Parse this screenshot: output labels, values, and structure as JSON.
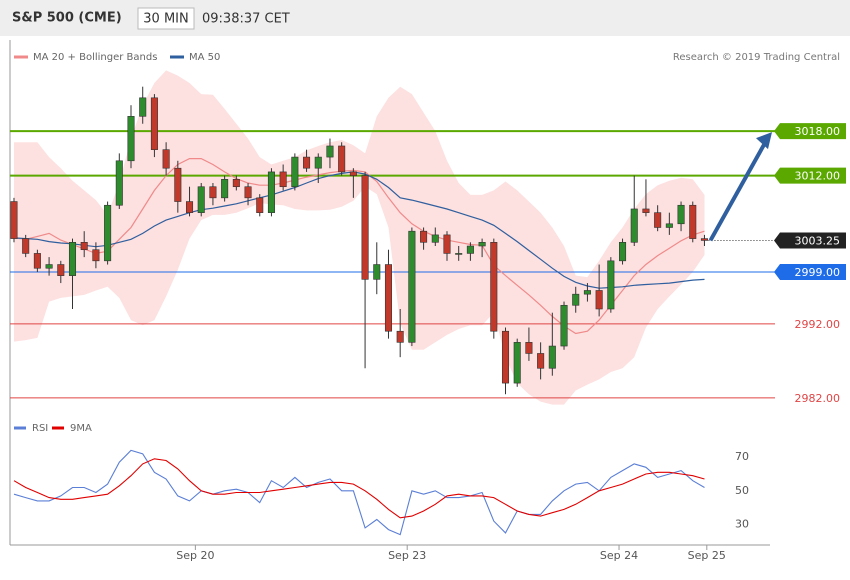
{
  "header": {
    "title": "S&P 500 (CME)",
    "interval": "30 MIN",
    "time": "09:38:37 CET"
  },
  "chart_data": [
    {
      "type": "candlestick",
      "credit": "Research © 2019 Trading Central",
      "xlim": [
        -0.34,
        64.6
      ],
      "ylim": [
        2980.1,
        3030.3
      ],
      "up_color": "#2e8b2e",
      "down_color": "#c0392b",
      "open": [
        3008.5,
        3003.5,
        3001.5,
        2999.5,
        3000,
        2998.5,
        3003,
        3002,
        3000.5,
        3008,
        3014,
        3020,
        3022.5,
        3015.5,
        3013,
        3008.5,
        3007,
        3010.5,
        3009,
        3011.5,
        3010.5,
        3009,
        3007,
        3012.5,
        3010.5,
        3014.5,
        3013,
        3014.5,
        3016,
        3012.5,
        3012,
        2998,
        3000,
        2991,
        2989.5,
        3004.5,
        3003,
        3004,
        3001.5,
        3001.5,
        3002.5,
        3003,
        2991,
        2984,
        2989.5,
        2988,
        2986,
        2989,
        2994.5,
        2996,
        2996.5,
        2994,
        3000.5,
        3003,
        3007.5,
        3007,
        3005,
        3005.5,
        3008,
        3003.5
      ],
      "high": [
        3009,
        3004,
        3002,
        3001,
        3000.5,
        3003.5,
        3004.5,
        3003,
        3008.5,
        3015,
        3021.5,
        3024,
        3023,
        3016.5,
        3014,
        3010.5,
        3011,
        3011,
        3012,
        3012,
        3011,
        3009.5,
        3013,
        3013.5,
        3015,
        3015.5,
        3015,
        3017,
        3016.5,
        3013,
        3012.5,
        3003,
        3002,
        2994,
        3005,
        3005,
        3005,
        3004.5,
        3002.5,
        3003,
        3003.5,
        3003.5,
        2991.5,
        2990,
        2991.5,
        2989.5,
        2993.5,
        2995,
        2997,
        2997.5,
        3000,
        3001,
        3003.5,
        3012,
        3011.5,
        3008,
        3007,
        3008.5,
        3008.5,
        3004
      ],
      "low": [
        3003,
        3001,
        2999,
        2998.5,
        2997.5,
        2994,
        3001,
        2999.5,
        3000,
        3007.5,
        3013,
        3019,
        3014.5,
        3012,
        3007,
        3006.5,
        3006.5,
        3008,
        3008.5,
        3010,
        3008,
        3006.5,
        3006.5,
        3010,
        3010,
        3012.5,
        3011,
        3013,
        3012,
        3009,
        2986,
        2996,
        2990,
        2987.5,
        2989,
        3002,
        3002.5,
        3000.5,
        3000.5,
        3000.5,
        3001,
        2990,
        2982.5,
        2983.5,
        2987,
        2984.5,
        2985,
        2988.5,
        2993.5,
        2995,
        2993,
        2993.5,
        3000,
        3002.5,
        3006.5,
        3004.5,
        3004,
        3004.5,
        3003,
        3002.5
      ],
      "close": [
        3003.5,
        3001.5,
        2999.5,
        3000,
        2998.5,
        3003,
        3002,
        3000.5,
        3008,
        3014,
        3020,
        3022.5,
        3015.5,
        3013,
        3008.5,
        3007,
        3010.5,
        3009,
        3011.5,
        3010.5,
        3009,
        3007,
        3012.5,
        3010.5,
        3014.5,
        3013,
        3014.5,
        3016,
        3012.5,
        3012,
        2998,
        3000,
        2991,
        2989.5,
        3004.5,
        3003,
        3004,
        3001.5,
        3001.5,
        3002.5,
        3003,
        2991,
        2984,
        2989.5,
        2988,
        2986,
        2989,
        2994.5,
        2996,
        2996.5,
        2994,
        3000.5,
        3003,
        3007.5,
        3007,
        3005,
        3005.5,
        3008,
        3003.5,
        3003.25
      ],
      "overlays": [
        {
          "name": "MA 20 + Bollinger Bands",
          "color": "#f08a8a",
          "band_color": "#fde0e0",
          "values": [
            3003.6,
            3003.4,
            3003.8,
            3004.2,
            3003.3,
            3002.7,
            3002.1,
            3001.5,
            3001.8,
            3003.4,
            3005,
            3007.5,
            3010,
            3012,
            3013.5,
            3014.3,
            3014.3,
            3013.5,
            3012.5,
            3011.6,
            3011,
            3010.7,
            3010.7,
            3011,
            3011.4,
            3011.8,
            3012.1,
            3012.4,
            3012.6,
            3012.7,
            3012.5,
            3011.2,
            3009,
            3007,
            3005.5,
            3004.5,
            3003.8,
            3003.3,
            3003,
            3002.7,
            3002.6,
            2999.9,
            2998.5,
            2997.2,
            2995.9,
            2994.5,
            2993,
            2991.7,
            2990.7,
            2991,
            2992.5,
            2994.5,
            2996.5,
            2998.5,
            3000,
            3001.2,
            3002.2,
            3003.2,
            3004,
            3004.5
          ],
          "upper": [
            3016.5,
            3016.5,
            3016.5,
            3014.5,
            3013,
            3011.3,
            3010,
            3008.7,
            3006.7,
            3011,
            3017,
            3021.5,
            3024.5,
            3026.2,
            3025.5,
            3024.5,
            3023,
            3022.9,
            3021,
            3019,
            3017,
            3014.5,
            3013.5,
            3014,
            3014.5,
            3015.4,
            3016,
            3016.5,
            3016.8,
            3016.1,
            3015,
            3020,
            3022.5,
            3024,
            3023,
            3020.5,
            3018,
            3014,
            3011,
            3009.4,
            3009.4,
            3010,
            3011.2,
            3010,
            3008.5,
            3007,
            3005,
            3002.5,
            2998.5,
            2998.3,
            3000.5,
            3003,
            3005,
            3007.5,
            3009.5,
            3010.7,
            3011.3,
            3011.7,
            3011.5,
            3009.4
          ],
          "lower": [
            2989.6,
            2989.8,
            2990.1,
            2995,
            2995.5,
            2995.7,
            2995.9,
            2996.5,
            2997,
            2995.5,
            2992.5,
            2991.8,
            2992.5,
            2995.7,
            2999.3,
            3003.5,
            3006,
            3006.7,
            3006.7,
            3007,
            3007.6,
            3008.3,
            3008.1,
            3008,
            3007.5,
            3007.3,
            3007.3,
            3007.4,
            3007.8,
            3008.6,
            3010.5,
            3009.5,
            3005,
            2992,
            2988.5,
            2988.5,
            2989.5,
            2990.5,
            2991.3,
            2991.8,
            2991.8,
            2993.5,
            2987.5,
            2984,
            2982.5,
            2981.5,
            2981.1,
            2981.1,
            2983,
            2983.8,
            2984.5,
            2985.5,
            2986,
            2987.5,
            2991.5,
            2994,
            2995.7,
            2997.3,
            2999,
            3001.3
          ]
        },
        {
          "name": "MA 50",
          "color": "#2f5f9e",
          "values": [
            3003.6,
            3003.5,
            3003.4,
            3003.1,
            3002.9,
            3002.8,
            3002.6,
            3002.4,
            3002.6,
            3003,
            3003.4,
            3004.2,
            3005.2,
            3006,
            3006.5,
            3007,
            3007.4,
            3007.6,
            3007.9,
            3008.2,
            3008.6,
            3009,
            3009.4,
            3009.9,
            3010.4,
            3011,
            3011.6,
            3012,
            3012.3,
            3012.5,
            3012.2,
            3011.5,
            3010.4,
            3009,
            3008.7,
            3008.3,
            3007.9,
            3007.5,
            3007,
            3006.5,
            3006,
            3005.3,
            3004.2,
            3003.1,
            3001.9,
            3000.7,
            2999.5,
            2998.4,
            2997.6,
            2997.1,
            2996.8,
            2996.9,
            2997,
            2997.2,
            2997.3,
            2997.4,
            2997.5,
            2997.7,
            2997.9,
            2998
          ]
        }
      ],
      "levels": [
        {
          "value": 3018,
          "label": "3018.00",
          "color": "#5aa800"
        },
        {
          "value": 3012,
          "label": "3012.00",
          "color": "#5aa800"
        },
        {
          "value": 2999,
          "label": "2999.00",
          "color": "#1e6ce8"
        },
        {
          "value": 2992,
          "label": "2992.00",
          "color": "#e04545"
        },
        {
          "value": 2982,
          "label": "2982.00",
          "color": "#e04545"
        }
      ],
      "last_price": 3003.25
    },
    {
      "type": "line",
      "xlim": [
        -0.34,
        64.6
      ],
      "ylim": [
        20.8,
        89.1
      ],
      "yticks": [
        30,
        50,
        70
      ],
      "xticks": [
        {
          "value": 15.5,
          "label": "Sep 20"
        },
        {
          "value": 33.6,
          "label": "Sep 23"
        },
        {
          "value": 51.7,
          "label": "Sep 24"
        },
        {
          "value": 59.2,
          "label": "Sep 25"
        }
      ],
      "series": [
        {
          "name": "RSI",
          "color": "#5b7fd6",
          "values": [
            48,
            46,
            44,
            44,
            47,
            52,
            52,
            49,
            54,
            67,
            74,
            72,
            61,
            57,
            47,
            44,
            50,
            48,
            50,
            51,
            49,
            43,
            56,
            52,
            58,
            52,
            55,
            57,
            50,
            50,
            28,
            33,
            27,
            24,
            50,
            48,
            50,
            46,
            46,
            47,
            49,
            32,
            25,
            38,
            36,
            36,
            44,
            50,
            54,
            55,
            50,
            58,
            62,
            66,
            64,
            58,
            60,
            62,
            56,
            52
          ]
        },
        {
          "name": "9MA",
          "color": "#e00000",
          "values": [
            56,
            52,
            49,
            46,
            45,
            45,
            46,
            47,
            48,
            53,
            59,
            66,
            69,
            68,
            63,
            56,
            50,
            48,
            48,
            49,
            49,
            49,
            50,
            51,
            52,
            53,
            54,
            55,
            55,
            54,
            50,
            45,
            39,
            34,
            35,
            38,
            42,
            47,
            48,
            47,
            47,
            46,
            42,
            38,
            36,
            35,
            37,
            39,
            42,
            46,
            50,
            52,
            54,
            57,
            60,
            61,
            61,
            60,
            59,
            57
          ]
        }
      ]
    }
  ]
}
